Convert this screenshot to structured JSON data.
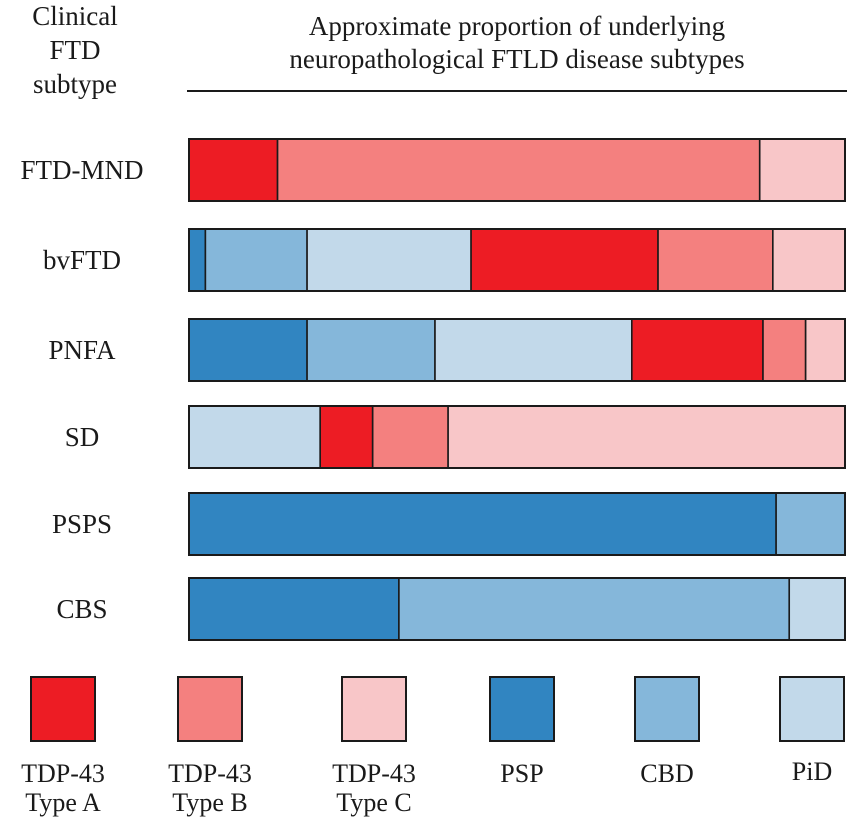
{
  "chart_data": {
    "type": "bar",
    "orientation": "horizontal",
    "stacked": true,
    "unit": "proportion (%)",
    "title": [
      "Approximate proportion of underlying",
      "neuropathological FTLD disease subtypes"
    ],
    "row_header": [
      "Clinical",
      "FTD",
      "subtype"
    ],
    "categories": [
      "FTD-MND",
      "bvFTD",
      "PNFA",
      "SD",
      "PSPS",
      "CBS"
    ],
    "series": [
      {
        "name": "TDP-43 Type A",
        "label_lines": [
          "TDP-43",
          "Type A"
        ],
        "color": "#ed1c24",
        "values": [
          13.5,
          28.5,
          20,
          8,
          0,
          0
        ]
      },
      {
        "name": "TDP-43 Type B",
        "label_lines": [
          "TDP-43",
          "Type B"
        ],
        "color": "#f4807f",
        "values": [
          73.5,
          17.5,
          6.5,
          11.5,
          0,
          0
        ]
      },
      {
        "name": "TDP-43 Type C",
        "label_lines": [
          "TDP-43",
          "Type C"
        ],
        "color": "#f8c6c8",
        "values": [
          13,
          11,
          6,
          60.5,
          0,
          0
        ]
      },
      {
        "name": "PSP",
        "label_lines": [
          "PSP"
        ],
        "color": "#3185c1",
        "values": [
          0,
          2.5,
          18,
          0,
          89.5,
          32
        ]
      },
      {
        "name": "CBD",
        "label_lines": [
          "CBD"
        ],
        "color": "#85b7da",
        "values": [
          0,
          15.5,
          19.5,
          0,
          10.5,
          59.5
        ]
      },
      {
        "name": "PiD",
        "label_lines": [
          "PiD"
        ],
        "color": "#c2d9ea",
        "values": [
          0,
          25,
          30,
          20,
          0,
          8.5
        ]
      }
    ],
    "segment_order": [
      [
        "TDP-43 Type A",
        "TDP-43 Type B",
        "TDP-43 Type C"
      ],
      [
        "PSP",
        "CBD",
        "PiD",
        "TDP-43 Type A",
        "TDP-43 Type B",
        "TDP-43 Type C"
      ],
      [
        "PSP",
        "CBD",
        "PiD",
        "TDP-43 Type A",
        "TDP-43 Type B",
        "TDP-43 Type C"
      ],
      [
        "PiD",
        "TDP-43 Type A",
        "TDP-43 Type B",
        "TDP-43 Type C"
      ],
      [
        "PSP",
        "CBD"
      ],
      [
        "PSP",
        "CBD",
        "PiD"
      ]
    ],
    "xlim": [
      0,
      100
    ],
    "legend_position": "bottom",
    "grid": false
  }
}
